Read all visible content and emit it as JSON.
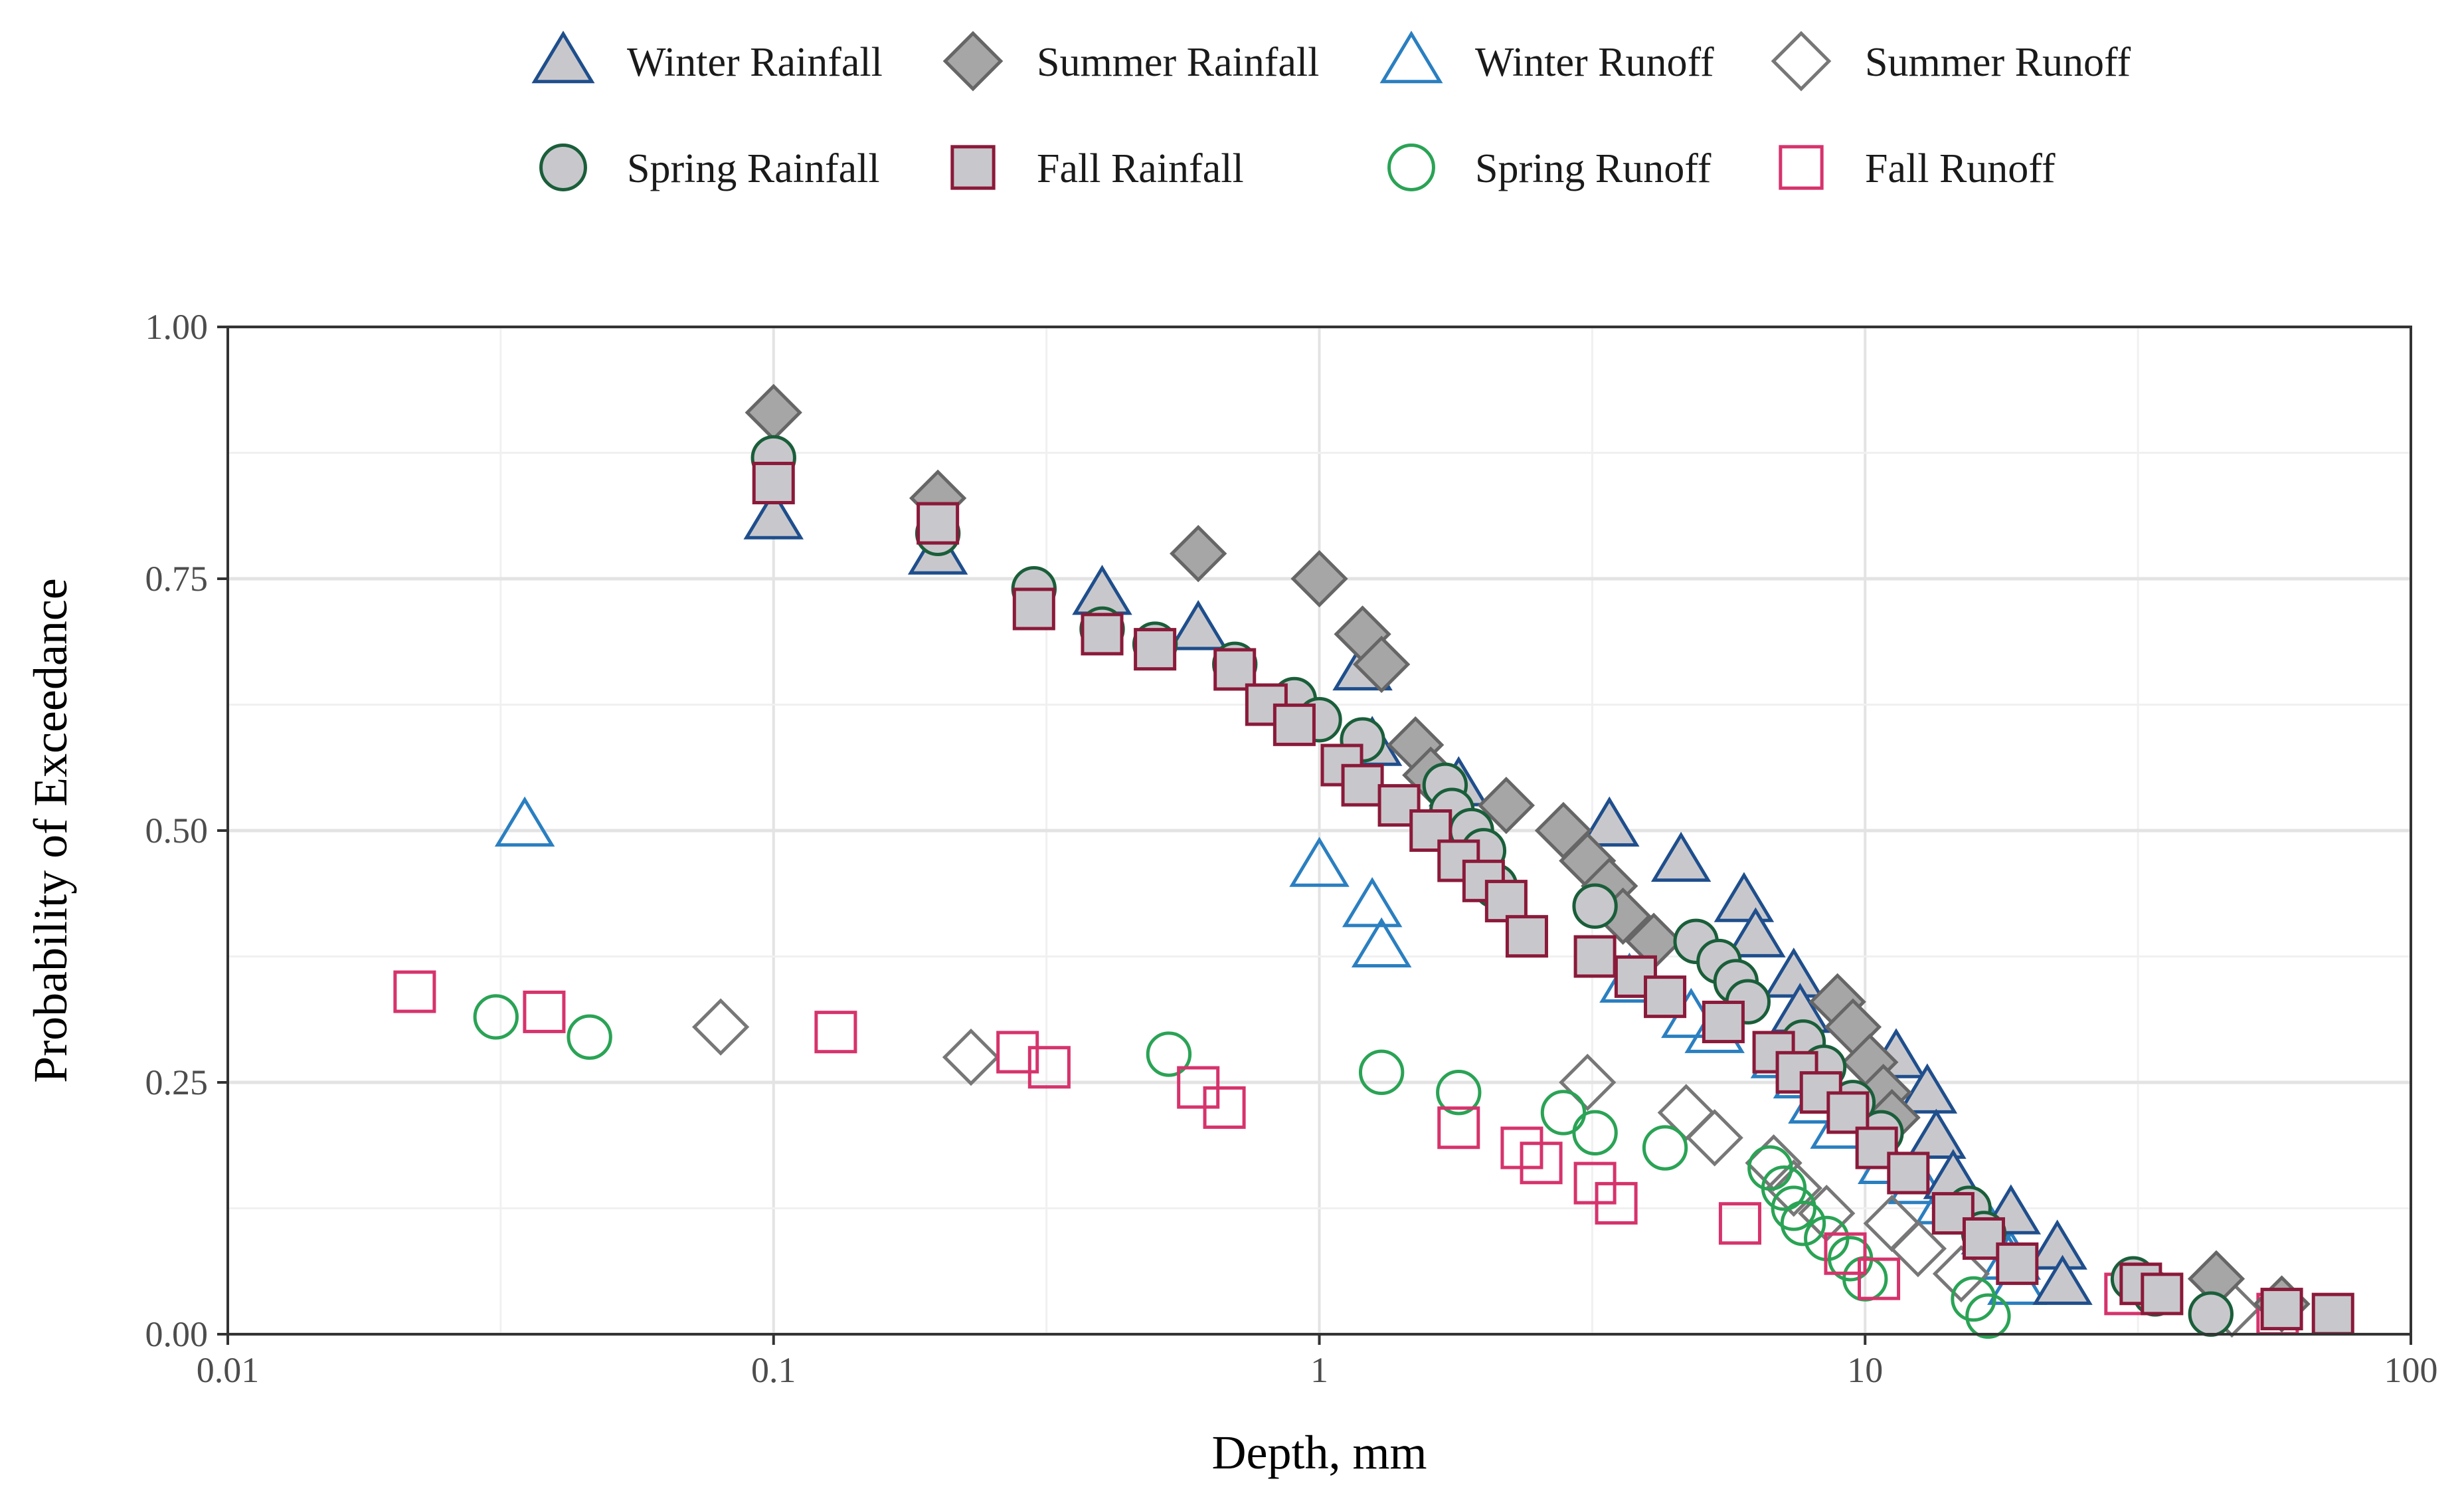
{
  "chart_data": {
    "type": "scatter",
    "xlabel": "Depth, mm",
    "ylabel": "Probability of Exceedance",
    "x_scale": "log",
    "xlim": [
      0.01,
      100
    ],
    "ylim": [
      0,
      1
    ],
    "x_ticks": [
      0.01,
      0.1,
      1,
      10,
      100
    ],
    "x_tick_labels": [
      "0.01",
      "0.1",
      "1",
      "10",
      "100"
    ],
    "y_ticks": [
      0,
      0.25,
      0.5,
      0.75,
      1.0
    ],
    "y_tick_labels": [
      "0.00",
      "0.25",
      "0.50",
      "0.75",
      "1.00"
    ],
    "grid": true,
    "legend_position": "top",
    "series": [
      {
        "name": "Winter Rainfall",
        "marker": "triangle",
        "filled": true,
        "stroke": "#1f4e8c",
        "fill": "#c8c8cc",
        "points": [
          [
            0.1,
            0.81
          ],
          [
            0.2,
            0.775
          ],
          [
            0.4,
            0.735
          ],
          [
            0.6,
            0.7
          ],
          [
            1.2,
            0.66
          ],
          [
            1.25,
            0.585
          ],
          [
            1.8,
            0.545
          ],
          [
            3.4,
            0.505
          ],
          [
            4.6,
            0.47
          ],
          [
            6,
            0.43
          ],
          [
            6.3,
            0.395
          ],
          [
            7.4,
            0.355
          ],
          [
            7.6,
            0.32
          ],
          [
            11.4,
            0.275
          ],
          [
            13,
            0.24
          ],
          [
            13.5,
            0.195
          ],
          [
            14.5,
            0.155
          ],
          [
            18.5,
            0.12
          ],
          [
            22.5,
            0.085
          ],
          [
            23,
            0.05
          ]
        ]
      },
      {
        "name": "Summer Rainfall",
        "marker": "diamond",
        "filled": true,
        "stroke": "#666666",
        "fill": "#a6a6a6",
        "points": [
          [
            0.1,
            0.915
          ],
          [
            0.2,
            0.83
          ],
          [
            0.6,
            0.775
          ],
          [
            1,
            0.75
          ],
          [
            1.2,
            0.695
          ],
          [
            1.3,
            0.665
          ],
          [
            1.5,
            0.585
          ],
          [
            1.6,
            0.555
          ],
          [
            2.2,
            0.525
          ],
          [
            2.8,
            0.5
          ],
          [
            3.1,
            0.47
          ],
          [
            3.4,
            0.445
          ],
          [
            3.6,
            0.415
          ],
          [
            4.1,
            0.39
          ],
          [
            8.9,
            0.33
          ],
          [
            9.5,
            0.305
          ],
          [
            10.2,
            0.27
          ],
          [
            10.8,
            0.24
          ],
          [
            11.2,
            0.215
          ],
          [
            44,
            0.055
          ],
          [
            58,
            0.03
          ]
        ]
      },
      {
        "name": "Winter Runoff",
        "marker": "triangle",
        "filled": false,
        "stroke": "#2a7fc0",
        "fill": "none",
        "points": [
          [
            0.035,
            0.505
          ],
          [
            1.0,
            0.465
          ],
          [
            1.25,
            0.425
          ],
          [
            1.3,
            0.385
          ],
          [
            3.7,
            0.35
          ],
          [
            4.8,
            0.315
          ],
          [
            5.3,
            0.3
          ],
          [
            7,
            0.275
          ],
          [
            7.7,
            0.255
          ],
          [
            8.2,
            0.23
          ],
          [
            9,
            0.205
          ],
          [
            11,
            0.17
          ],
          [
            12.5,
            0.15
          ],
          [
            14,
            0.13
          ],
          [
            17,
            0.1
          ],
          [
            18.5,
            0.075
          ],
          [
            19,
            0.05
          ]
        ]
      },
      {
        "name": "Summer Runoff",
        "marker": "diamond",
        "filled": false,
        "stroke": "#777777",
        "fill": "none",
        "points": [
          [
            0.08,
            0.305
          ],
          [
            0.23,
            0.275
          ],
          [
            3.1,
            0.25
          ],
          [
            4.7,
            0.22
          ],
          [
            5.3,
            0.195
          ],
          [
            6.8,
            0.17
          ],
          [
            7.4,
            0.145
          ],
          [
            8.5,
            0.12
          ],
          [
            11.2,
            0.11
          ],
          [
            12.5,
            0.085
          ],
          [
            15,
            0.06
          ],
          [
            47,
            0.025
          ]
        ]
      },
      {
        "name": "Spring Rainfall",
        "marker": "circle",
        "filled": true,
        "stroke": "#1a5e3a",
        "fill": "#c8c8cc",
        "points": [
          [
            0.1,
            0.87
          ],
          [
            0.2,
            0.795
          ],
          [
            0.3,
            0.74
          ],
          [
            0.4,
            0.7
          ],
          [
            0.5,
            0.685
          ],
          [
            0.7,
            0.665
          ],
          [
            0.9,
            0.63
          ],
          [
            1.0,
            0.61
          ],
          [
            1.2,
            0.59
          ],
          [
            1.7,
            0.545
          ],
          [
            1.75,
            0.52
          ],
          [
            1.9,
            0.5
          ],
          [
            2,
            0.48
          ],
          [
            2.1,
            0.445
          ],
          [
            3.2,
            0.425
          ],
          [
            4.9,
            0.39
          ],
          [
            5.4,
            0.37
          ],
          [
            5.8,
            0.35
          ],
          [
            6.1,
            0.33
          ],
          [
            7.7,
            0.29
          ],
          [
            8.4,
            0.265
          ],
          [
            9.5,
            0.23
          ],
          [
            10.7,
            0.2
          ],
          [
            15.5,
            0.125
          ],
          [
            16.5,
            0.1
          ],
          [
            31,
            0.055
          ],
          [
            34,
            0.04
          ],
          [
            43,
            0.02
          ]
        ]
      },
      {
        "name": "Fall Rainfall",
        "marker": "square",
        "filled": true,
        "stroke": "#8b1a3a",
        "fill": "#c8c8cc",
        "points": [
          [
            0.1,
            0.845
          ],
          [
            0.2,
            0.805
          ],
          [
            0.3,
            0.72
          ],
          [
            0.4,
            0.695
          ],
          [
            0.5,
            0.68
          ],
          [
            0.7,
            0.66
          ],
          [
            0.8,
            0.625
          ],
          [
            0.9,
            0.605
          ],
          [
            1.1,
            0.565
          ],
          [
            1.2,
            0.545
          ],
          [
            1.4,
            0.525
          ],
          [
            1.6,
            0.5
          ],
          [
            1.8,
            0.47
          ],
          [
            2.0,
            0.45
          ],
          [
            2.2,
            0.43
          ],
          [
            2.4,
            0.395
          ],
          [
            3.2,
            0.375
          ],
          [
            3.8,
            0.355
          ],
          [
            4.3,
            0.335
          ],
          [
            5.5,
            0.31
          ],
          [
            6.8,
            0.28
          ],
          [
            7.5,
            0.26
          ],
          [
            8.3,
            0.24
          ],
          [
            9.3,
            0.22
          ],
          [
            10.5,
            0.185
          ],
          [
            12,
            0.16
          ],
          [
            14.5,
            0.12
          ],
          [
            16.5,
            0.095
          ],
          [
            19,
            0.07
          ],
          [
            32,
            0.05
          ],
          [
            35,
            0.04
          ],
          [
            58,
            0.025
          ],
          [
            72,
            0.02
          ]
        ]
      },
      {
        "name": "Spring Runoff",
        "marker": "circle",
        "filled": false,
        "stroke": "#2aa355",
        "fill": "none",
        "points": [
          [
            0.031,
            0.315
          ],
          [
            0.046,
            0.295
          ],
          [
            0.53,
            0.278
          ],
          [
            1.3,
            0.26
          ],
          [
            1.8,
            0.24
          ],
          [
            2.8,
            0.22
          ],
          [
            3.2,
            0.2
          ],
          [
            4.3,
            0.185
          ],
          [
            6.7,
            0.165
          ],
          [
            7.1,
            0.145
          ],
          [
            7.4,
            0.125
          ],
          [
            7.7,
            0.11
          ],
          [
            8.5,
            0.095
          ],
          [
            9.4,
            0.075
          ],
          [
            10,
            0.055
          ],
          [
            15.8,
            0.035
          ],
          [
            16.8,
            0.018
          ]
        ]
      },
      {
        "name": "Fall Runoff",
        "marker": "square",
        "filled": false,
        "stroke": "#d6336c",
        "fill": "none",
        "points": [
          [
            0.022,
            0.34
          ],
          [
            0.038,
            0.32
          ],
          [
            0.13,
            0.3
          ],
          [
            0.28,
            0.28
          ],
          [
            0.32,
            0.265
          ],
          [
            0.6,
            0.245
          ],
          [
            0.67,
            0.225
          ],
          [
            1.8,
            0.205
          ],
          [
            2.35,
            0.185
          ],
          [
            2.55,
            0.17
          ],
          [
            3.2,
            0.15
          ],
          [
            3.5,
            0.13
          ],
          [
            5.9,
            0.11
          ],
          [
            9.2,
            0.08
          ],
          [
            10.6,
            0.055
          ],
          [
            30,
            0.04
          ],
          [
            57,
            0.02
          ]
        ]
      }
    ]
  }
}
